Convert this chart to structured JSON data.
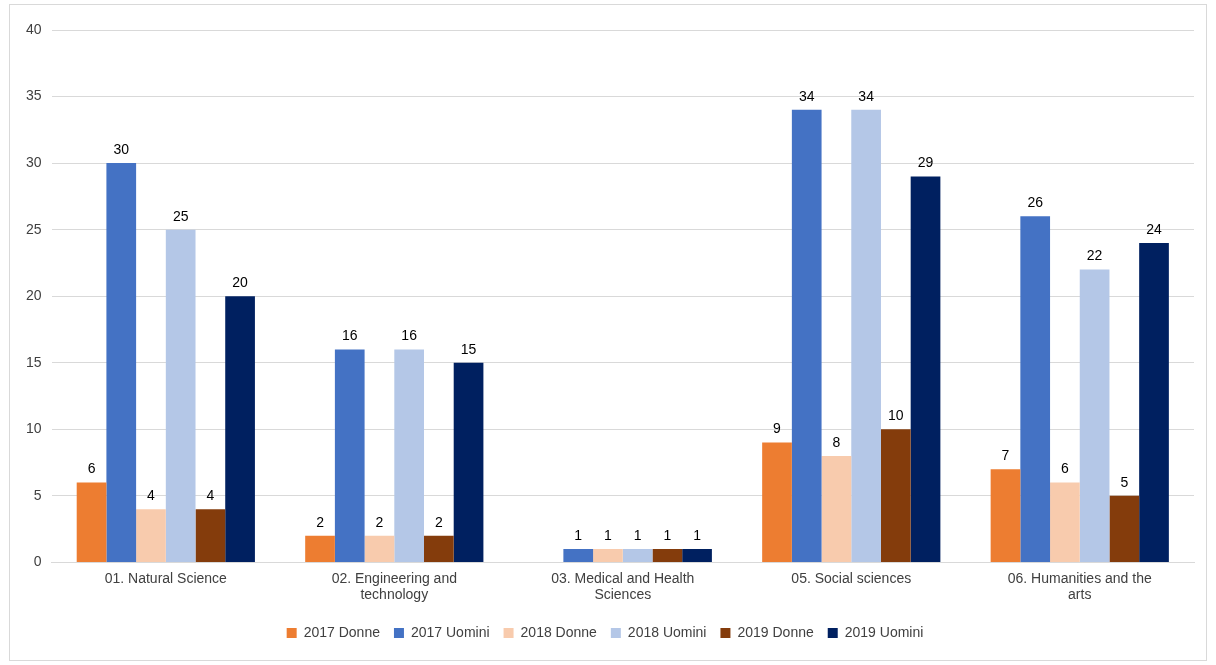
{
  "chart_data": {
    "type": "bar",
    "categories": [
      "01. Natural Science",
      "02. Engineering and technology",
      "03. Medical and Health Sciences",
      "05. Social sciences",
      "06. Humanities and the arts"
    ],
    "series": [
      {
        "name": "2017 Donne",
        "color": "#ed7d31",
        "values": [
          6,
          2,
          null,
          9,
          7
        ]
      },
      {
        "name": "2017 Uomini",
        "color": "#4472c4",
        "values": [
          30,
          16,
          1,
          34,
          26
        ]
      },
      {
        "name": "2018 Donne",
        "color": "#f8cbad",
        "values": [
          4,
          2,
          1,
          8,
          6
        ]
      },
      {
        "name": "2018 Uomini",
        "color": "#b4c7e7",
        "values": [
          25,
          16,
          1,
          34,
          22
        ]
      },
      {
        "name": "2019 Donne",
        "color": "#843c0c",
        "values": [
          4,
          2,
          1,
          10,
          5
        ]
      },
      {
        "name": "2019 Uomini",
        "color": "#002060",
        "values": [
          20,
          15,
          1,
          29,
          24
        ]
      }
    ],
    "ylim": [
      0,
      40
    ],
    "yticks": [
      0,
      5,
      10,
      15,
      20,
      25,
      30,
      35,
      40
    ],
    "grid": "y",
    "legend": "bottom",
    "data_labels": true
  }
}
